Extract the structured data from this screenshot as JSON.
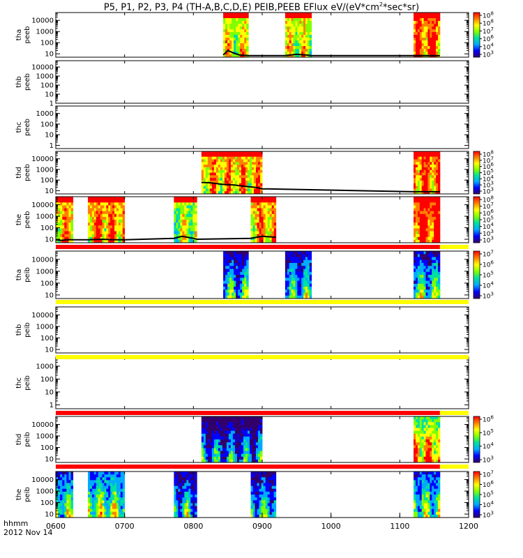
{
  "title": {
    "main": "P5, P1, P2, P3, P4 (TH-A,B,C,D,E) PEIB,PEEB EFlux eV/(eV*cm",
    "sup": "2",
    "tail": "*sec*sr)"
  },
  "footer": {
    "label": "hhmm",
    "date": "2012 Nov 14"
  },
  "chart_data": {
    "type": "heatmap",
    "x_ticks": [
      "0600",
      "0700",
      "0800",
      "0900",
      "1000",
      "1100",
      "1200"
    ],
    "x_range": [
      "0600",
      "1200"
    ],
    "y_scale": "log",
    "colormap": [
      "#32006a",
      "#0000ff",
      "#00aaff",
      "#00e0a0",
      "#80ff00",
      "#ffff00",
      "#ff8000",
      "#ff0000"
    ],
    "panels": [
      {
        "label1": "tha",
        "label2": "peeb",
        "yticks": [
          "10000",
          "1000",
          "100",
          "10"
        ],
        "ylim": [
          5,
          50000
        ],
        "colorbar": [
          "10",
          "10",
          "10",
          "10",
          "10",
          "10"
        ],
        "colorbar_exp": [
          "8",
          "8",
          "7",
          "6",
          "4",
          "3"
        ],
        "blocks": [
          {
            "start": "0826",
            "end": "0848",
            "level": 0.65
          },
          {
            "start": "0920",
            "end": "0943",
            "level": 0.65
          },
          {
            "start": "1112",
            "end": "1135",
            "level": 0.85
          }
        ],
        "spacecraft_potential": [
          [
            826,
            8
          ],
          [
            830,
            20
          ],
          [
            835,
            12
          ],
          [
            840,
            8
          ],
          [
            848,
            7
          ],
          [
            920,
            7
          ],
          [
            930,
            9
          ],
          [
            938,
            8
          ],
          [
            943,
            7
          ],
          [
            1112,
            7
          ],
          [
            1135,
            7
          ]
        ]
      },
      {
        "label1": "thb",
        "label2": "peeb",
        "yticks": [
          "10000",
          "1000",
          "100",
          "10",
          "1"
        ],
        "ylim": [
          1,
          50000
        ],
        "blocks": []
      },
      {
        "label1": "thc",
        "label2": "peeb",
        "yticks": [
          "1000",
          "100",
          "10",
          "1"
        ],
        "ylim": [
          0.5,
          5000
        ],
        "blocks": []
      },
      {
        "label1": "thd",
        "label2": "peeb",
        "yticks": [
          "10000",
          "1000",
          "100",
          "10"
        ],
        "ylim": [
          5,
          50000
        ],
        "colorbar": [
          "10",
          "10",
          "10",
          "10",
          "10",
          "10",
          "10"
        ],
        "colorbar_exp": [
          "8",
          "7",
          "6",
          "5",
          "4",
          "3",
          "3"
        ],
        "blocks": [
          {
            "start": "0807",
            "end": "0900",
            "level": 0.75
          },
          {
            "start": "1112",
            "end": "1135",
            "level": 0.85
          }
        ],
        "spacecraft_potential": [
          [
            807,
            60
          ],
          [
            815,
            55
          ],
          [
            825,
            40
          ],
          [
            835,
            35
          ],
          [
            845,
            25
          ],
          [
            855,
            20
          ],
          [
            900,
            15
          ],
          [
            1112,
            8
          ],
          [
            1135,
            8
          ]
        ]
      },
      {
        "label1": "the",
        "label2": "peeb",
        "yticks": [
          "10000",
          "1000",
          "100",
          "10"
        ],
        "ylim": [
          5,
          50000
        ],
        "colorbar": [
          "10",
          "10",
          "10",
          "10",
          "10",
          "10",
          "10"
        ],
        "colorbar_exp": [
          "8",
          "7",
          "6",
          "5",
          "4",
          "3",
          "3"
        ],
        "blocks": [
          {
            "start": "0600",
            "end": "0615",
            "level": 0.75
          },
          {
            "start": "0628",
            "end": "0700",
            "level": 0.8
          },
          {
            "start": "0743",
            "end": "0803",
            "level": 0.6
          },
          {
            "start": "0850",
            "end": "0912",
            "level": 0.75
          },
          {
            "start": "1112",
            "end": "1135",
            "level": 0.9
          }
        ],
        "spacecraft_potential": [
          [
            600,
            9
          ],
          [
            605,
            8
          ],
          [
            610,
            9
          ],
          [
            628,
            9
          ],
          [
            640,
            10
          ],
          [
            650,
            9
          ],
          [
            700,
            9
          ],
          [
            743,
            12
          ],
          [
            750,
            18
          ],
          [
            760,
            12
          ],
          [
            803,
            10
          ],
          [
            850,
            12
          ],
          [
            900,
            18
          ],
          [
            912,
            15
          ]
        ]
      },
      {
        "label1": "tha",
        "label2": "peib",
        "yticks": [
          "10000",
          "1000",
          "100",
          "10"
        ],
        "ylim": [
          5,
          50000
        ],
        "colorbar": [
          "10",
          "10",
          "10",
          "10",
          "10"
        ],
        "colorbar_exp": [
          "7",
          "6",
          "5",
          "4",
          "3"
        ],
        "blocks": [
          {
            "start": "0826",
            "end": "0848",
            "level": 0.45
          },
          {
            "start": "0920",
            "end": "0943",
            "level": 0.45
          },
          {
            "start": "1112",
            "end": "1135",
            "level": 0.5
          }
        ]
      },
      {
        "label1": "thb",
        "label2": "peib",
        "yticks": [
          "10000",
          "1000",
          "100",
          "10"
        ],
        "ylim": [
          5,
          50000
        ],
        "blocks": []
      },
      {
        "label1": "thc",
        "label2": "peib",
        "yticks": [
          "1000",
          "100",
          "10",
          "1"
        ],
        "ylim": [
          0.5,
          5000
        ],
        "blocks": []
      },
      {
        "label1": "thd",
        "label2": "peib",
        "yticks": [
          "10000",
          "1000",
          "100",
          "10"
        ],
        "ylim": [
          5,
          50000
        ],
        "colorbar": [
          "10",
          "10",
          "10",
          "10"
        ],
        "colorbar_exp": [
          "6",
          "5",
          "4",
          "3"
        ],
        "blocks": [
          {
            "start": "0807",
            "end": "0900",
            "level": 0.35
          },
          {
            "start": "1112",
            "end": "1135",
            "level": 0.85
          }
        ]
      },
      {
        "label1": "the",
        "label2": "peib",
        "yticks": [
          "10000",
          "1000",
          "100",
          "10"
        ],
        "ylim": [
          5,
          50000
        ],
        "colorbar": [
          "10",
          "10",
          "10",
          "10",
          "10"
        ],
        "colorbar_exp": [
          "7",
          "6",
          "5",
          "4",
          "3"
        ],
        "blocks": [
          {
            "start": "0600",
            "end": "0615",
            "level": 0.55
          },
          {
            "start": "0628",
            "end": "0700",
            "level": 0.6
          },
          {
            "start": "0743",
            "end": "0803",
            "level": 0.45
          },
          {
            "start": "0850",
            "end": "0912",
            "level": 0.45
          },
          {
            "start": "1112",
            "end": "1135",
            "level": 0.55
          }
        ]
      }
    ],
    "mode_bars": [
      {
        "after_panel": 4,
        "segments": [
          {
            "start": "0600",
            "end": "1135",
            "color": "#ff0000"
          },
          {
            "start": "1135",
            "end": "1200",
            "color": "#ffff00"
          }
        ]
      },
      {
        "after_panel": 5,
        "segments": [
          {
            "start": "0600",
            "end": "1200",
            "color": "#ffff00"
          }
        ]
      },
      {
        "after_panel": 6,
        "segments": [
          {
            "start": "0600",
            "end": "1200",
            "color": "#ffff00"
          }
        ]
      },
      {
        "after_panel": 7,
        "segments": [
          {
            "start": "0600",
            "end": "1135",
            "color": "#ff0000"
          },
          {
            "start": "1135",
            "end": "1200",
            "color": "#ffff00"
          }
        ]
      },
      {
        "after_panel": 8,
        "segments": [
          {
            "start": "0600",
            "end": "1135",
            "color": "#ff0000"
          },
          {
            "start": "1135",
            "end": "1200",
            "color": "#ffff00"
          }
        ]
      }
    ]
  }
}
